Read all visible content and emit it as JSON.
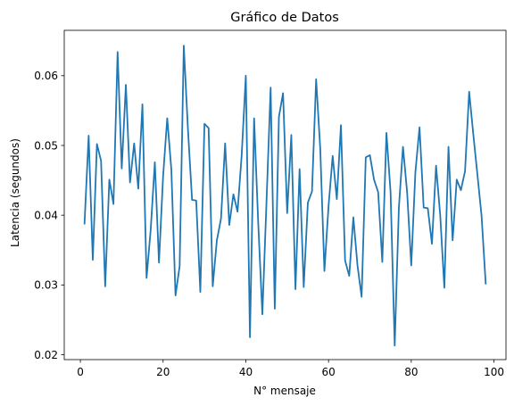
{
  "chart_data": {
    "type": "line",
    "title": "Gráfico de Datos",
    "xlabel": "N° mensaje",
    "ylabel": "Latencia (segundos)",
    "xlim": [
      -3.9,
      102.9
    ],
    "ylim": [
      0.0193,
      0.0665
    ],
    "xticks": [
      0,
      20,
      40,
      60,
      80,
      100
    ],
    "yticks": [
      0.02,
      0.03,
      0.04,
      0.05,
      0.06
    ],
    "ytick_labels": [
      "0.02",
      "0.03",
      "0.04",
      "0.05",
      "0.06"
    ],
    "grid": false,
    "series": [
      {
        "color": "#1f77b4",
        "x": [
          1,
          2,
          3,
          4,
          5,
          6,
          7,
          8,
          9,
          10,
          11,
          12,
          13,
          14,
          15,
          16,
          17,
          18,
          19,
          20,
          21,
          22,
          23,
          24,
          25,
          26,
          27,
          28,
          29,
          30,
          31,
          32,
          33,
          34,
          35,
          36,
          37,
          38,
          39,
          40,
          41,
          42,
          43,
          44,
          45,
          46,
          47,
          48,
          49,
          50,
          51,
          52,
          53,
          54,
          55,
          56,
          57,
          58,
          59,
          60,
          61,
          62,
          63,
          64,
          65,
          66,
          67,
          68,
          69,
          70,
          71,
          72,
          73,
          74,
          75,
          76,
          77,
          78,
          79,
          80,
          81,
          82,
          83,
          84,
          85,
          86,
          87,
          88,
          89,
          90,
          91,
          92,
          93,
          94,
          95,
          96,
          97,
          98
        ],
        "values": [
          0.0388,
          0.0514,
          0.0336,
          0.0502,
          0.0478,
          0.0298,
          0.0451,
          0.0416,
          0.0634,
          0.0467,
          0.0587,
          0.0447,
          0.0503,
          0.0438,
          0.0559,
          0.031,
          0.0379,
          0.0476,
          0.0332,
          0.0456,
          0.0539,
          0.0465,
          0.0285,
          0.0327,
          0.0643,
          0.0524,
          0.0422,
          0.0421,
          0.029,
          0.0531,
          0.0525,
          0.0298,
          0.0364,
          0.0395,
          0.0503,
          0.0386,
          0.043,
          0.0405,
          0.0486,
          0.06,
          0.0225,
          0.0539,
          0.0389,
          0.0258,
          0.0419,
          0.0583,
          0.0266,
          0.0541,
          0.0575,
          0.0403,
          0.0515,
          0.0294,
          0.0466,
          0.0297,
          0.0418,
          0.0434,
          0.0595,
          0.0495,
          0.032,
          0.0413,
          0.0485,
          0.0423,
          0.0529,
          0.0335,
          0.0313,
          0.0397,
          0.0328,
          0.0283,
          0.0483,
          0.0486,
          0.0451,
          0.0433,
          0.0333,
          0.0518,
          0.0433,
          0.0213,
          0.041,
          0.0498,
          0.0433,
          0.0328,
          0.0462,
          0.0526,
          0.0411,
          0.041,
          0.0359,
          0.0471,
          0.04,
          0.0296,
          0.0498,
          0.0364,
          0.0451,
          0.0436,
          0.0463,
          0.0577,
          0.0516,
          0.0458,
          0.0399,
          0.0302
        ]
      }
    ]
  }
}
